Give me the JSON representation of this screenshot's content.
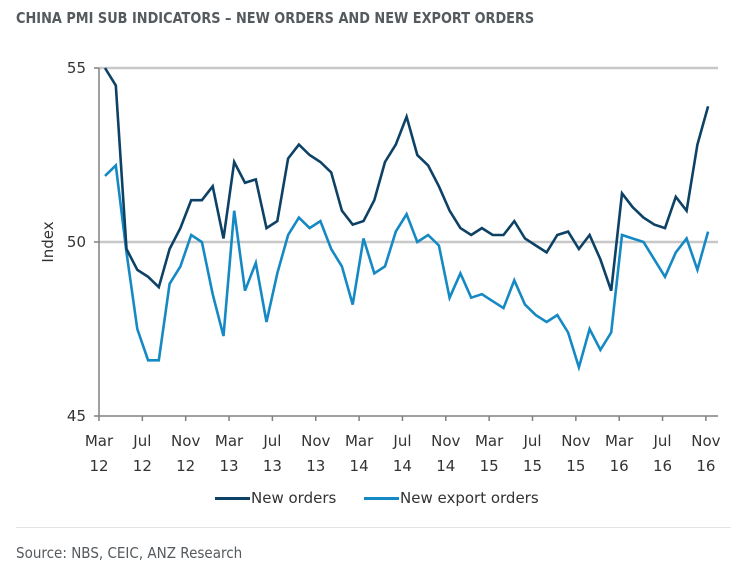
{
  "title": "CHINA PMI SUB INDICATORS – NEW ORDERS AND NEW EXPORT ORDERS",
  "source": "Source: NBS, CEIC, ANZ Research",
  "colors": {
    "new_orders": "#0d4266",
    "new_export_orders": "#1589c3",
    "gridline": "#c8c8c8",
    "axis": "#808080",
    "title": "#555a5e"
  },
  "chart_data": {
    "type": "line",
    "title": "CHINA PMI SUB INDICATORS – NEW ORDERS AND NEW EXPORT ORDERS",
    "xlabel": "",
    "ylabel": "Index",
    "ylim": [
      45,
      55
    ],
    "yticks": [
      "45",
      "50",
      "55"
    ],
    "ytick_values": [
      45,
      50,
      55
    ],
    "gridlines": [
      50,
      55
    ],
    "legend_position": "bottom",
    "x_start": "Mar 2012",
    "x_end": "Nov 2016",
    "frequency": "monthly",
    "xticks": [
      {
        "month": "Mar",
        "year": "12",
        "index": 0
      },
      {
        "month": "Jul",
        "year": "12",
        "index": 4
      },
      {
        "month": "Nov",
        "year": "12",
        "index": 8
      },
      {
        "month": "Mar",
        "year": "13",
        "index": 12
      },
      {
        "month": "Jul",
        "year": "13",
        "index": 16
      },
      {
        "month": "Nov",
        "year": "13",
        "index": 20
      },
      {
        "month": "Mar",
        "year": "14",
        "index": 24
      },
      {
        "month": "Jul",
        "year": "14",
        "index": 28
      },
      {
        "month": "Nov",
        "year": "14",
        "index": 32
      },
      {
        "month": "Mar",
        "year": "15",
        "index": 36
      },
      {
        "month": "Jul",
        "year": "15",
        "index": 40
      },
      {
        "month": "Nov",
        "year": "15",
        "index": 44
      },
      {
        "month": "Mar",
        "year": "16",
        "index": 48
      },
      {
        "month": "Jul",
        "year": "16",
        "index": 52
      },
      {
        "month": "Nov",
        "year": "16",
        "index": 56
      }
    ],
    "series": [
      {
        "name": "New orders",
        "color": "#0d4266",
        "values": [
          55.0,
          54.5,
          49.8,
          49.2,
          49.0,
          48.7,
          49.8,
          50.4,
          51.2,
          51.2,
          51.6,
          50.1,
          52.3,
          51.7,
          51.8,
          50.4,
          50.6,
          52.4,
          52.8,
          52.5,
          52.3,
          52.0,
          50.9,
          50.5,
          50.6,
          51.2,
          52.3,
          52.8,
          53.6,
          52.5,
          52.2,
          51.6,
          50.9,
          50.4,
          50.2,
          50.4,
          50.2,
          50.2,
          50.6,
          50.1,
          49.9,
          49.7,
          50.2,
          50.3,
          49.8,
          50.2,
          49.5,
          48.6,
          51.4,
          51.0,
          50.7,
          50.5,
          50.4,
          51.3,
          50.9,
          52.8,
          53.9
        ]
      },
      {
        "name": "New export orders",
        "color": "#1589c3",
        "values": [
          51.9,
          52.2,
          49.7,
          47.5,
          46.6,
          46.6,
          48.8,
          49.3,
          50.2,
          50.0,
          48.5,
          47.3,
          50.9,
          48.6,
          49.4,
          47.7,
          49.1,
          50.2,
          50.7,
          50.4,
          50.6,
          49.8,
          49.3,
          48.2,
          50.1,
          49.1,
          49.3,
          50.3,
          50.8,
          50.0,
          50.2,
          49.9,
          48.4,
          49.1,
          48.4,
          48.5,
          48.3,
          48.1,
          48.9,
          48.2,
          47.9,
          47.7,
          47.9,
          47.4,
          46.4,
          47.5,
          46.9,
          47.4,
          50.2,
          50.1,
          50.0,
          49.5,
          49.0,
          49.7,
          50.1,
          49.2,
          50.3
        ]
      }
    ]
  }
}
